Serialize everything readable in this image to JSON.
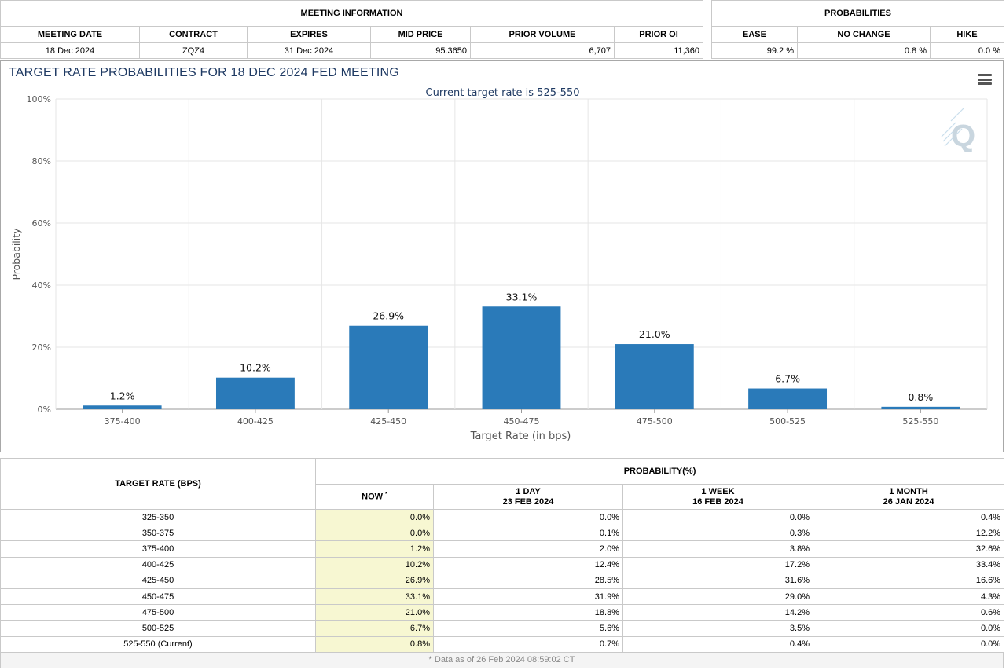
{
  "meeting_info": {
    "title": "MEETING INFORMATION",
    "columns": [
      "MEETING DATE",
      "CONTRACT",
      "EXPIRES",
      "MID PRICE",
      "PRIOR VOLUME",
      "PRIOR OI"
    ],
    "values": [
      "18 Dec 2024",
      "ZQZ4",
      "31 Dec 2024",
      "95.3650",
      "6,707",
      "11,360"
    ]
  },
  "probabilities": {
    "title": "PROBABILITIES",
    "columns": [
      "EASE",
      "NO CHANGE",
      "HIKE"
    ],
    "values": [
      "99.2 %",
      "0.8 %",
      "0.0 %"
    ]
  },
  "chart": {
    "title": "TARGET RATE PROBABILITIES FOR 18 DEC 2024 FED MEETING",
    "menu_icon": "hamburger-menu-icon",
    "watermark_icon": "q-logo-icon",
    "bar_color": "#2a7ab9"
  },
  "chart_data": {
    "type": "bar",
    "title": "Current target rate is 525-550",
    "xlabel": "Target Rate (in bps)",
    "ylabel": "Probability",
    "categories": [
      "375-400",
      "400-425",
      "425-450",
      "450-475",
      "475-500",
      "500-525",
      "525-550"
    ],
    "values": [
      1.2,
      10.2,
      26.9,
      33.1,
      21.0,
      6.7,
      0.8
    ],
    "data_labels": [
      "1.2%",
      "10.2%",
      "26.9%",
      "33.1%",
      "21.0%",
      "6.7%",
      "0.8%"
    ],
    "ylim": [
      0,
      100
    ],
    "yticks": [
      0,
      20,
      40,
      60,
      80,
      100
    ],
    "ytick_labels": [
      "0%",
      "20%",
      "40%",
      "60%",
      "80%",
      "100%"
    ],
    "grid": true,
    "legend": "none"
  },
  "prob_table": {
    "target_header": "TARGET RATE (BPS)",
    "prob_header": "PROBABILITY(%)",
    "now_header": "NOW",
    "now_marker": "*",
    "cols": [
      {
        "label": "1 DAY",
        "date": "23 FEB 2024"
      },
      {
        "label": "1 WEEK",
        "date": "16 FEB 2024"
      },
      {
        "label": "1 MONTH",
        "date": "26 JAN 2024"
      }
    ],
    "rows": [
      {
        "rate": "325-350",
        "now": "0.0%",
        "day": "0.0%",
        "week": "0.0%",
        "month": "0.4%"
      },
      {
        "rate": "350-375",
        "now": "0.0%",
        "day": "0.1%",
        "week": "0.3%",
        "month": "12.2%"
      },
      {
        "rate": "375-400",
        "now": "1.2%",
        "day": "2.0%",
        "week": "3.8%",
        "month": "32.6%"
      },
      {
        "rate": "400-425",
        "now": "10.2%",
        "day": "12.4%",
        "week": "17.2%",
        "month": "33.4%"
      },
      {
        "rate": "425-450",
        "now": "26.9%",
        "day": "28.5%",
        "week": "31.6%",
        "month": "16.6%"
      },
      {
        "rate": "450-475",
        "now": "33.1%",
        "day": "31.9%",
        "week": "29.0%",
        "month": "4.3%"
      },
      {
        "rate": "475-500",
        "now": "21.0%",
        "day": "18.8%",
        "week": "14.2%",
        "month": "0.6%"
      },
      {
        "rate": "500-525",
        "now": "6.7%",
        "day": "5.6%",
        "week": "3.5%",
        "month": "0.0%"
      },
      {
        "rate": "525-550 (Current)",
        "now": "0.8%",
        "day": "0.7%",
        "week": "0.4%",
        "month": "0.0%"
      }
    ],
    "footnote": "* Data as of 26 Feb 2024 08:59:02 CT"
  }
}
